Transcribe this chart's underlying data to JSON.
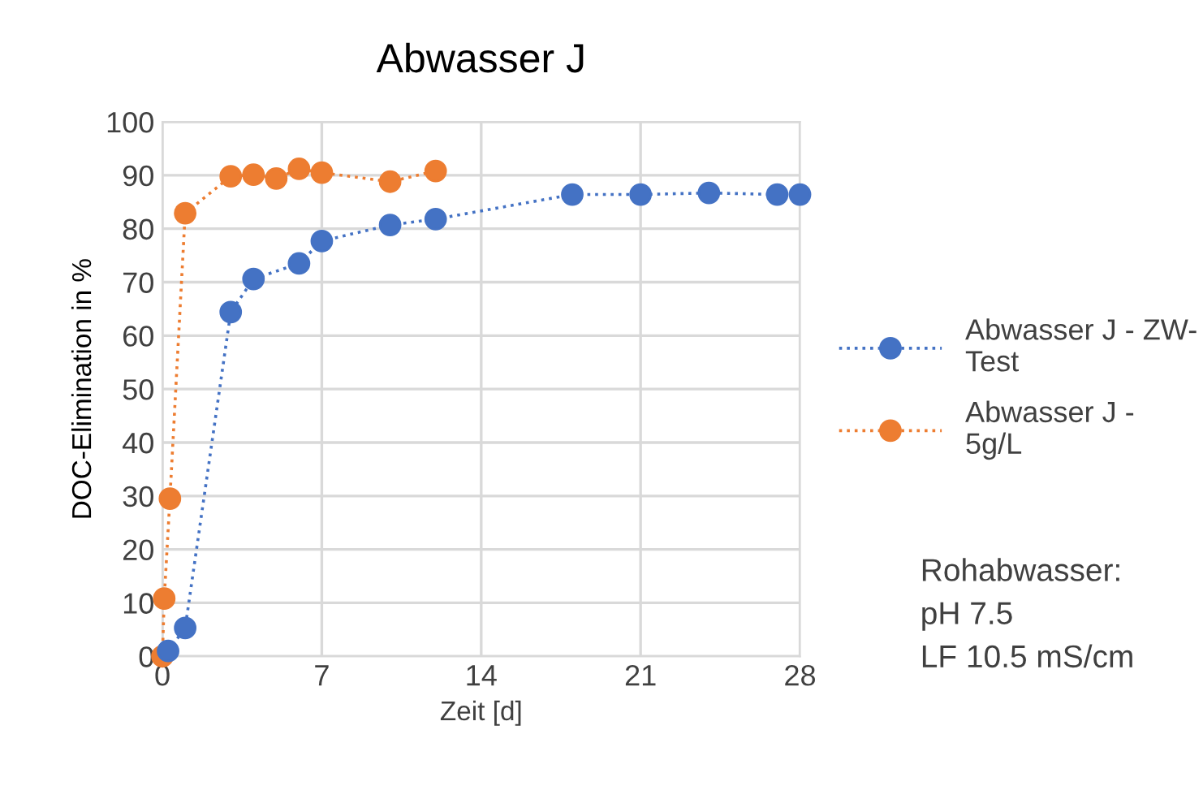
{
  "chart_data": {
    "type": "line",
    "title": "Abwasser J",
    "xlabel": "Zeit [d]",
    "ylabel": "DOC-Elimination in %",
    "xlim": [
      0,
      28
    ],
    "xticks": [
      0,
      7,
      14,
      21,
      28
    ],
    "ylim": [
      0,
      100
    ],
    "yticks": [
      0,
      10,
      20,
      30,
      40,
      50,
      60,
      70,
      80,
      90,
      100
    ],
    "grid": true,
    "legend": "right",
    "marker": "circle",
    "line_style": "dotted",
    "series": [
      {
        "name": "Abwasser J - ZW-\nTest",
        "color": "#4472c4",
        "x": [
          0.25,
          1,
          3,
          4,
          6,
          7,
          10,
          12,
          18,
          21,
          24,
          27,
          28
        ],
        "values": [
          1,
          5.3,
          64.4,
          70.6,
          73.5,
          77.7,
          80.7,
          81.8,
          86.4,
          86.4,
          86.7,
          86.4,
          86.4
        ]
      },
      {
        "name": "Abwasser J -\n5g/L",
        "color": "#ed7d31",
        "x": [
          0,
          0.08,
          0.33,
          1,
          3,
          4,
          5,
          6,
          7,
          10,
          12
        ],
        "values": [
          0,
          10.8,
          29.5,
          82.9,
          89.8,
          90.1,
          89.4,
          91.2,
          90.5,
          88.8,
          90.8
        ]
      }
    ],
    "annotations": [
      "Rohabwasser:\npH 7.5\nLF 10.5 mS/cm"
    ]
  }
}
